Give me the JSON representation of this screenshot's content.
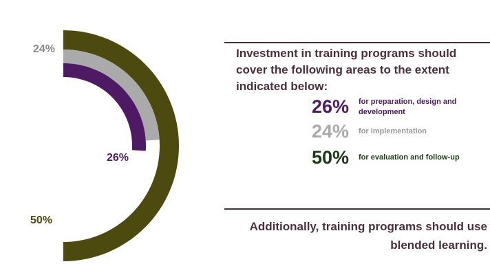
{
  "chart_data": {
    "type": "pie",
    "style": "nested-semicircle-arcs",
    "slices": [
      {
        "label": "26%",
        "value": 26,
        "description": "for preparation, design and development",
        "color": "#4e1a63"
      },
      {
        "label": "24%",
        "value": 24,
        "description": "for implementation",
        "color": "#aaaaaa"
      },
      {
        "label": "50%",
        "value": 50,
        "description": "for evaluation and follow-up",
        "color": "#4d4a10"
      }
    ]
  },
  "heading": "Investment in training programs should cover the following areas to the extent indicated below:",
  "footer": "Additionally, training programs should use blended learning.",
  "colors": {
    "purple": "#4e1a63",
    "gray": "#aaaaaa",
    "olive": "#4d4a10",
    "green_text": "#1c3a16",
    "heading_text": "#4a2f3c"
  }
}
